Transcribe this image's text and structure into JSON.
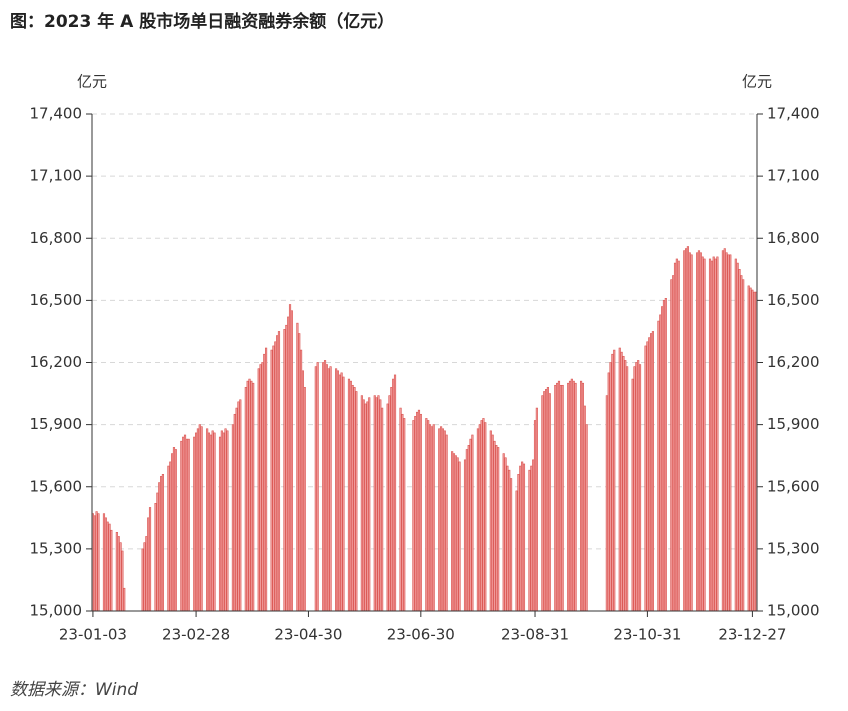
{
  "chart_data": {
    "type": "bar",
    "title": "图：2023 年 A 股市场单日融资融券余额（亿元）",
    "y_label": "亿元",
    "y2_label": "亿元",
    "source": "数据来源：Wind",
    "color": "#f2a0a0",
    "edge_color": "#d9534f",
    "ylim": [
      15000,
      17400
    ],
    "yticks": [
      {
        "value": 15000,
        "label": "15,000"
      },
      {
        "value": 15300,
        "label": "15,300"
      },
      {
        "value": 15600,
        "label": "15,600"
      },
      {
        "value": 15900,
        "label": "15,900"
      },
      {
        "value": 16200,
        "label": "16,200"
      },
      {
        "value": 16500,
        "label": "16,500"
      },
      {
        "value": 16800,
        "label": "16,800"
      },
      {
        "value": 17100,
        "label": "17,100"
      },
      {
        "value": 17400,
        "label": "17,400"
      }
    ],
    "y2lim": [
      15000,
      17400
    ],
    "y2ticks": [
      {
        "value": 15000,
        "label": "15,000"
      },
      {
        "value": 15300,
        "label": "15,300"
      },
      {
        "value": 15600,
        "label": "15,600"
      },
      {
        "value": 15900,
        "label": "15,900"
      },
      {
        "value": 16200,
        "label": "16,200"
      },
      {
        "value": 16500,
        "label": "16,500"
      },
      {
        "value": 16800,
        "label": "16,800"
      },
      {
        "value": 17100,
        "label": "17,100"
      },
      {
        "value": 17400,
        "label": "17,400"
      }
    ],
    "grid": true,
    "categories": [
      "23-01-03",
      null,
      null,
      null,
      null,
      null,
      null,
      null,
      null,
      null,
      null,
      null,
      null,
      null,
      null,
      null,
      null,
      null,
      null,
      null,
      null,
      null,
      null,
      null,
      null,
      null,
      null,
      null,
      null,
      null,
      null,
      null,
      null,
      null,
      null,
      null,
      null,
      null,
      null,
      null,
      null,
      null,
      null,
      null,
      null,
      null,
      null,
      null,
      null,
      null,
      null,
      null,
      null,
      null,
      null,
      null,
      "23-02-28",
      null,
      null,
      null,
      null,
      null,
      null,
      null,
      null,
      null,
      null,
      null,
      null,
      null,
      null,
      null,
      null,
      null,
      null,
      null,
      null,
      null,
      null,
      null,
      null,
      null,
      null,
      null,
      null,
      null,
      null,
      null,
      null,
      null,
      null,
      null,
      null,
      null,
      null,
      null,
      null,
      null,
      null,
      null,
      null,
      null,
      null,
      null,
      null,
      null,
      null,
      null,
      null,
      null,
      null,
      null,
      null,
      null,
      null,
      null,
      null,
      "23-04-30",
      null,
      null,
      null,
      null,
      null,
      null,
      null,
      null,
      null,
      null,
      null,
      null,
      null,
      null,
      null,
      null,
      null,
      null,
      null,
      null,
      null,
      null,
      null,
      null,
      null,
      null,
      null,
      null,
      null,
      null,
      null,
      null,
      null,
      null,
      null,
      null,
      null,
      null,
      null,
      null,
      null,
      null,
      null,
      null,
      null,
      null,
      null,
      null,
      null,
      null,
      null,
      null,
      null,
      null,
      null,
      null,
      null,
      null,
      null,
      null,
      "23-06-30",
      null,
      null,
      null,
      null,
      null,
      null,
      null,
      null,
      null,
      null,
      null,
      null,
      null,
      null,
      null,
      null,
      null,
      null,
      null,
      null,
      null,
      null,
      null,
      null,
      null,
      null,
      null,
      null,
      null,
      null,
      null,
      null,
      null,
      null,
      null,
      null,
      null,
      null,
      null,
      null,
      null,
      null,
      null,
      null,
      null,
      null,
      null,
      null,
      null,
      null,
      null,
      null,
      null,
      null,
      null,
      null,
      null,
      null,
      null,
      null,
      null,
      "23-08-31",
      null,
      null,
      null,
      null,
      null,
      null,
      null,
      null,
      null,
      null,
      null,
      null,
      null,
      null,
      null,
      null,
      null,
      null,
      null,
      null,
      null,
      null,
      null,
      null,
      null,
      null,
      null,
      null,
      null,
      null,
      null,
      null,
      null,
      null,
      null,
      null,
      null,
      null,
      null,
      null,
      null,
      null,
      null,
      null,
      null,
      null,
      null,
      null,
      null,
      null,
      null,
      null,
      null,
      null,
      null,
      null,
      null,
      null,
      null,
      null,
      "23-10-31",
      null,
      null,
      null,
      null,
      null,
      null,
      null,
      null,
      null,
      null,
      null,
      null,
      null,
      null,
      null,
      null,
      null,
      null,
      null,
      null,
      null,
      null,
      null,
      null,
      null,
      null,
      null,
      null,
      null,
      null,
      null,
      null,
      null,
      null,
      null,
      null,
      null,
      null,
      null,
      null,
      null,
      null,
      null,
      null,
      null,
      null,
      null,
      null,
      null,
      null,
      null,
      null,
      null,
      null,
      null,
      null,
      "23-12-27",
      null,
      null
    ],
    "values": [
      15470,
      15460,
      15480,
      15470,
      null,
      null,
      15470,
      15450,
      15430,
      15420,
      15390,
      null,
      null,
      15380,
      15360,
      15330,
      15290,
      15110,
      null,
      null,
      null,
      null,
      null,
      null,
      null,
      null,
      null,
      15300,
      15330,
      15360,
      15450,
      15500,
      null,
      null,
      15520,
      15570,
      15620,
      15650,
      15660,
      null,
      null,
      15700,
      15720,
      15760,
      15790,
      15780,
      null,
      null,
      15820,
      15840,
      15850,
      15830,
      15830,
      null,
      null,
      15840,
      15860,
      15880,
      15900,
      15890,
      null,
      null,
      15880,
      15860,
      15850,
      15870,
      15860,
      null,
      null,
      15840,
      15870,
      15860,
      15880,
      15870,
      null,
      null,
      15900,
      15950,
      15980,
      16010,
      16020,
      null,
      null,
      16080,
      16110,
      16120,
      16110,
      16100,
      null,
      null,
      16170,
      16190,
      16200,
      16240,
      16270,
      null,
      null,
      16260,
      16280,
      16300,
      16330,
      16350,
      null,
      null,
      16360,
      16380,
      16420,
      16480,
      16450,
      null,
      null,
      16390,
      16340,
      16260,
      16160,
      16080,
      null,
      null,
      null,
      null,
      null,
      16180,
      16200,
      null,
      null,
      16200,
      16210,
      16190,
      16170,
      16180,
      null,
      null,
      16170,
      16160,
      16140,
      16150,
      16130,
      null,
      null,
      16120,
      16110,
      16090,
      16080,
      16060,
      null,
      null,
      16040,
      16020,
      16000,
      16010,
      16030,
      null,
      null,
      16040,
      16030,
      16040,
      16020,
      15980,
      null,
      null,
      16000,
      16040,
      16080,
      16120,
      16140,
      null,
      null,
      15980,
      15950,
      15930,
      null,
      null,
      null,
      null,
      15920,
      15940,
      15960,
      15970,
      15950,
      null,
      null,
      15930,
      15920,
      15900,
      15890,
      15900,
      null,
      null,
      15880,
      15890,
      15880,
      15870,
      15850,
      null,
      null,
      15770,
      15760,
      15750,
      15740,
      15720,
      null,
      null,
      15730,
      15780,
      15800,
      15830,
      15850,
      null,
      null,
      15880,
      15900,
      15920,
      15930,
      15910,
      null,
      null,
      15870,
      15850,
      15820,
      15800,
      15790,
      null,
      null,
      15760,
      15740,
      15700,
      15680,
      15640,
      null,
      null,
      15580,
      15660,
      15700,
      15720,
      15710,
      null,
      null,
      15680,
      15700,
      15730,
      15920,
      15980,
      null,
      null,
      16040,
      16060,
      16070,
      16080,
      16050,
      null,
      null,
      16090,
      16100,
      16110,
      16090,
      16090,
      null,
      null,
      16100,
      16110,
      16120,
      16110,
      16100,
      null,
      null,
      16110,
      16100,
      15990,
      15900,
      null,
      null,
      null,
      null,
      null,
      null,
      null,
      null,
      null,
      null,
      16040,
      16150,
      16200,
      16240,
      16260,
      null,
      null,
      16270,
      16250,
      16230,
      16210,
      16180,
      null,
      null,
      16120,
      16180,
      16200,
      16210,
      16190,
      null,
      null,
      16280,
      16300,
      16320,
      16340,
      16350,
      null,
      null,
      16400,
      16430,
      16470,
      16500,
      16510,
      null,
      null,
      16600,
      16620,
      16680,
      16700,
      16690,
      null,
      null,
      16740,
      16750,
      16760,
      16730,
      16720,
      null,
      null,
      16730,
      16740,
      16730,
      16710,
      16700,
      null,
      null,
      16700,
      16690,
      16710,
      16700,
      16710,
      null,
      null,
      16740,
      16750,
      16730,
      16720,
      16720,
      null,
      null,
      16700,
      16680,
      16650,
      16620,
      16600,
      null,
      null,
      16570,
      16560,
      16550,
      16540,
      16540
    ]
  }
}
